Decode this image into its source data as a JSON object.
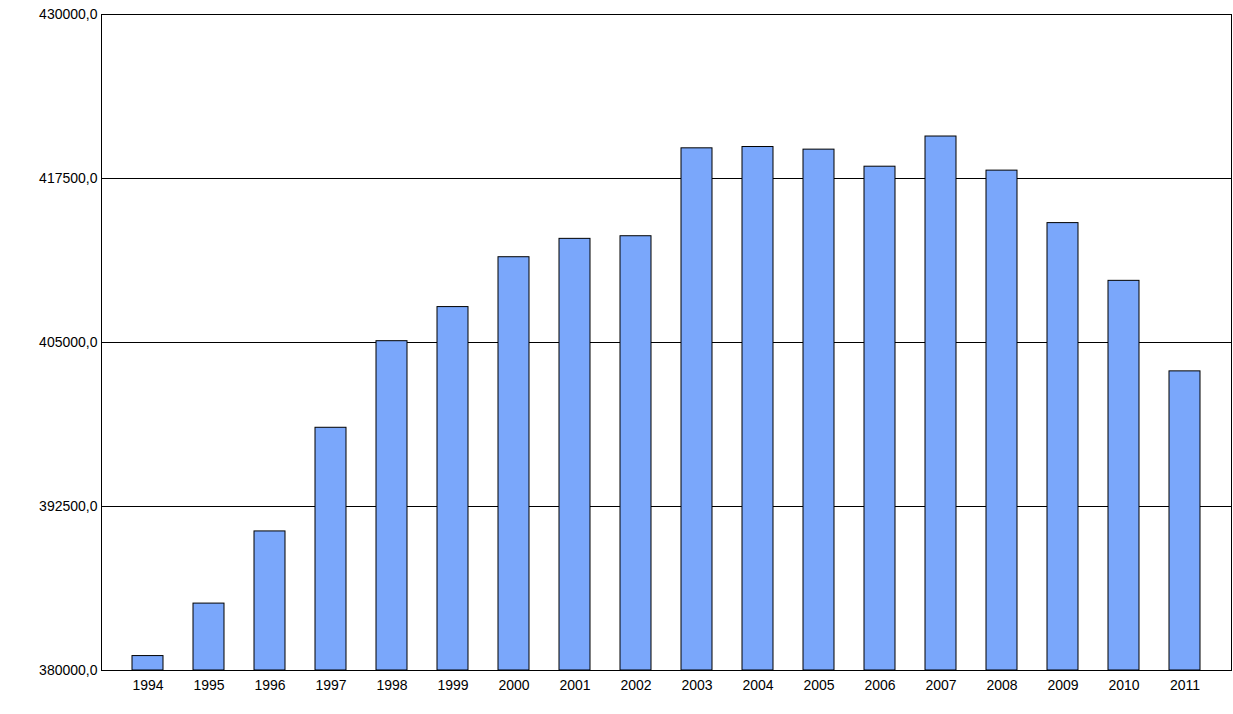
{
  "chart_data": {
    "type": "bar",
    "categories": [
      "1994",
      "1995",
      "1996",
      "1997",
      "1998",
      "1999",
      "2000",
      "2001",
      "2002",
      "2003",
      "2004",
      "2005",
      "2006",
      "2007",
      "2008",
      "2009",
      "2010",
      "2011"
    ],
    "values": [
      381100,
      385100,
      390600,
      398500,
      405100,
      407700,
      411500,
      412900,
      413100,
      419800,
      419900,
      419700,
      418400,
      420700,
      418100,
      414100,
      409700,
      402800
    ],
    "color": "#7aa7fb",
    "ylim": [
      380000,
      430000
    ],
    "yticks": [
      {
        "value": 380000,
        "label": "380000,0"
      },
      {
        "value": 392500,
        "label": "392500,0"
      },
      {
        "value": 405000,
        "label": "405000,0"
      },
      {
        "value": 417500,
        "label": "417500,0"
      },
      {
        "value": 430000,
        "label": "430000,0"
      }
    ],
    "grid": true
  }
}
